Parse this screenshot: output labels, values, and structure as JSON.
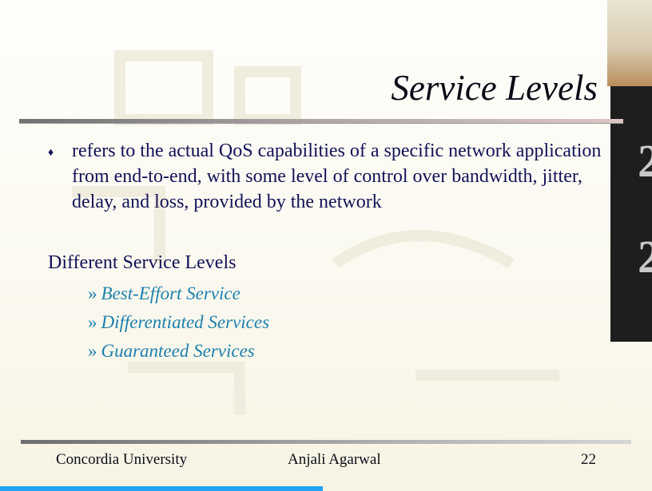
{
  "slide": {
    "title": "Service Levels",
    "bullet": {
      "icon": "diamond-bullet-icon",
      "text": "refers to the actual QoS capabilities of a specific network application from end-to-end, with some level of control over bandwidth, jitter, delay, and loss, provided by the network"
    },
    "sub_heading": "Different Service Levels",
    "levels": [
      {
        "marker": "»",
        "label": "Best-Effort Service"
      },
      {
        "marker": "»",
        "label": "Differentiated Services"
      },
      {
        "marker": "»",
        "label": "Guaranteed Services"
      }
    ],
    "footer": {
      "left": "Concordia University",
      "center": "Anjali Agarwal",
      "page_number": "22"
    }
  },
  "colors": {
    "body_text": "#121257",
    "level_text": "#1e7fae",
    "title": "#0b0b16",
    "progress_bar": "#22a3f2"
  }
}
